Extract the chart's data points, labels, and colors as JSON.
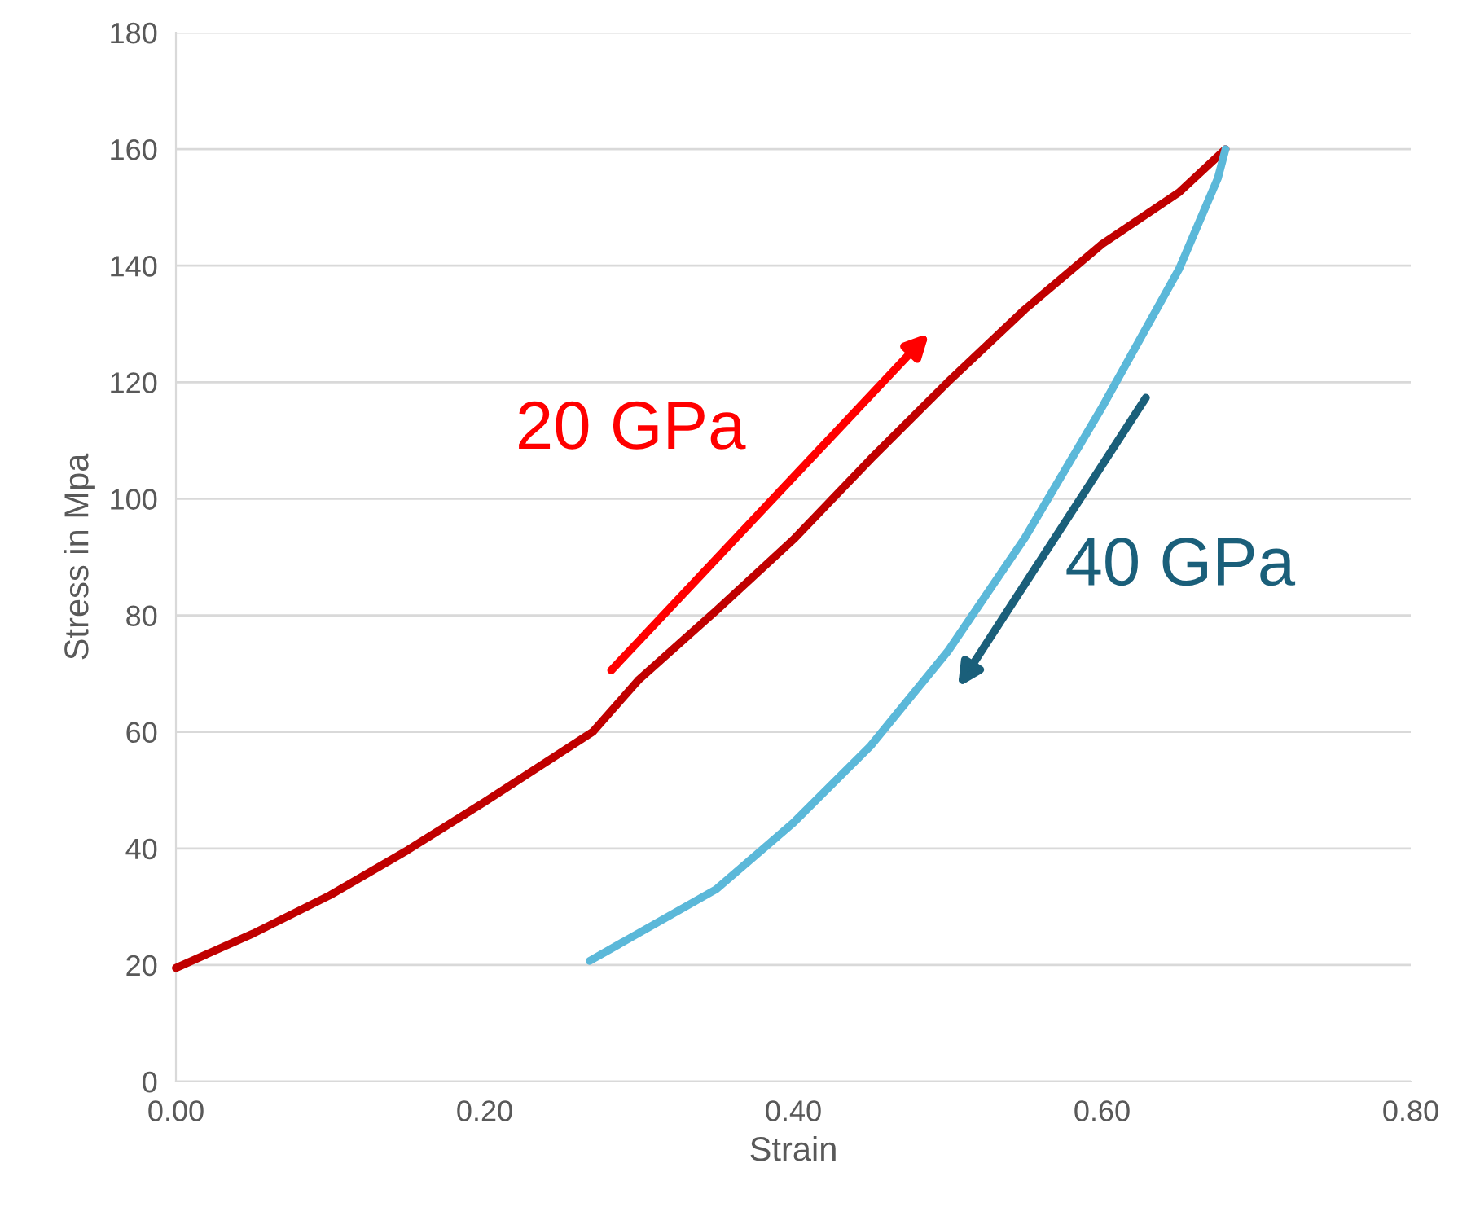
{
  "chart_data": {
    "type": "line",
    "xlabel": "Strain",
    "ylabel": "Stress in Mpa",
    "annotations": [
      "20 GPa",
      "40 GPa"
    ],
    "series": [
      {
        "color": "#c00000",
        "x": [
          0,
          0.05,
          0.1,
          0.15,
          0.2,
          0.27,
          0.3,
          0.35,
          0.4,
          0.45,
          0.5,
          0.55,
          0.6,
          0.65,
          0.68
        ],
        "values": [
          19.5,
          25.4,
          32,
          39.7,
          48,
          60,
          69,
          80.8,
          93,
          106.8,
          120,
          132.5,
          143.7,
          152.6,
          160
        ]
      },
      {
        "color": "#5bb8d9",
        "x": [
          0.68,
          0.675,
          0.65,
          0.6,
          0.55,
          0.5,
          0.45,
          0.4,
          0.35,
          0.268
        ],
        "values": [
          160,
          155,
          139.5,
          115.7,
          93.3,
          73.8,
          57.6,
          44.4,
          33,
          20.7
        ]
      }
    ],
    "xlim": [
      0,
      0.8
    ],
    "ylim": [
      0,
      180
    ],
    "xticks": [
      {
        "value": 0,
        "label": "0.00"
      },
      {
        "value": 0.2,
        "label": "0.20"
      },
      {
        "value": 0.4,
        "label": "0.40"
      },
      {
        "value": 0.6,
        "label": "0.60"
      },
      {
        "value": 0.8,
        "label": "0.80"
      }
    ],
    "yticks": [
      0,
      20,
      40,
      60,
      80,
      100,
      120,
      140,
      160,
      180
    ],
    "grid": "y",
    "marker": "none",
    "line_style": "solid",
    "legend": false
  }
}
